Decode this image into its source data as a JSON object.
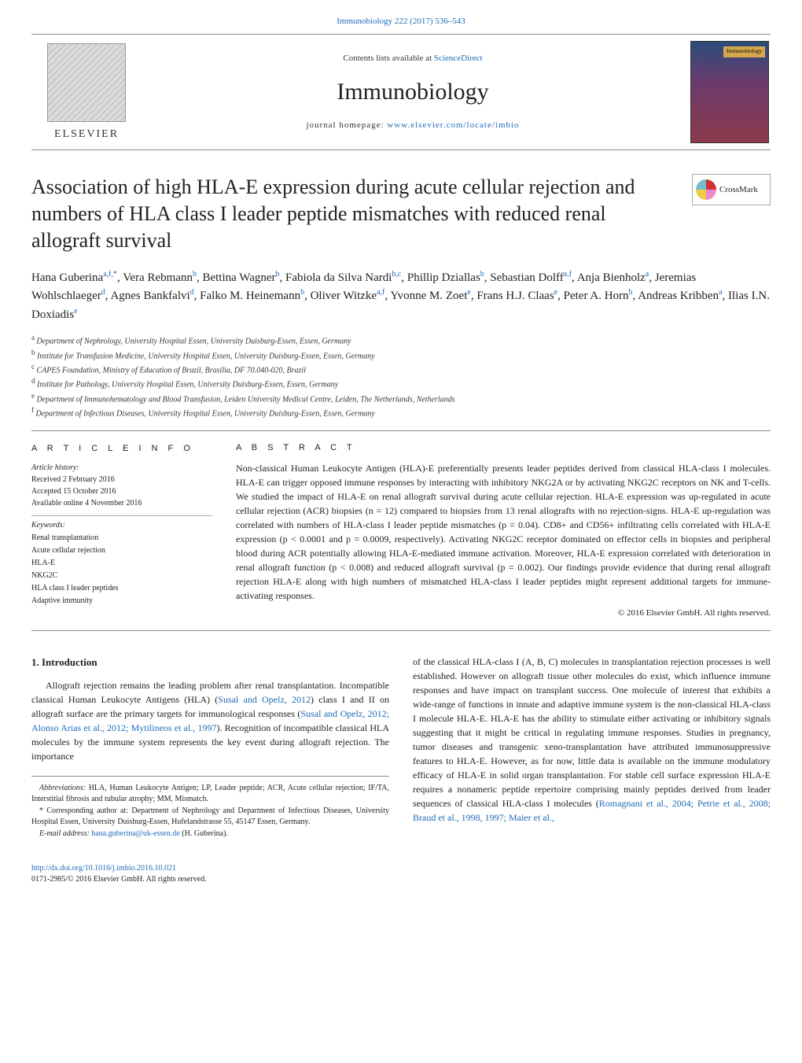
{
  "header": {
    "citation": "Immunobiology 222 (2017) 536–543",
    "contents_prefix": "Contents lists available at ",
    "contents_link": "ScienceDirect",
    "journal": "Immunobiology",
    "homepage_prefix": "journal homepage: ",
    "homepage_link": "www.elsevier.com/locate/imbio",
    "publisher": "ELSEVIER",
    "cover_label": "Immunobiology"
  },
  "crossmark": "CrossMark",
  "title": "Association of high HLA-E expression during acute cellular rejection and numbers of HLA class I leader peptide mismatches with reduced renal allograft survival",
  "authors_html": "Hana Guberina<sup>a,f,*</sup>, Vera Rebmann<sup>b</sup>, Bettina Wagner<sup>b</sup>, Fabiola da Silva Nardi<sup>b,c</sup>, Phillip Dziallas<sup>b</sup>, Sebastian Dolff<sup>a,f</sup>, Anja Bienholz<sup>a</sup>, Jeremias Wohlschlaeger<sup>d</sup>, Agnes Bankfalvi<sup>d</sup>, Falko M. Heinemann<sup>b</sup>, Oliver Witzke<sup>a,f</sup>, Yvonne M. Zoet<sup>e</sup>, Frans H.J. Claas<sup>e</sup>, Peter A. Horn<sup>b</sup>, Andreas Kribben<sup>a</sup>, Ilias I.N. Doxiadis<sup>e</sup>",
  "affiliations": [
    {
      "sup": "a",
      "text": "Department of Nephrology, University Hospital Essen, University Duisburg-Essen, Essen, Germany"
    },
    {
      "sup": "b",
      "text": "Institute for Transfusion Medicine, University Hospital Essen, University Duisburg-Essen, Essen, Germany"
    },
    {
      "sup": "c",
      "text": "CAPES Foundation, Ministry of Education of Brazil, Brasília, DF 70.040-020, Brazil"
    },
    {
      "sup": "d",
      "text": "Institute for Pathology, University Hospital Essen, University Duisburg-Essen, Essen, Germany"
    },
    {
      "sup": "e",
      "text": "Department of Immunohematology and Blood Transfusion, Leiden University Medical Centre, Leiden, The Netherlands, Netherlands"
    },
    {
      "sup": "f",
      "text": "Department of Infectious Diseases, University Hospital Essen, University Duisburg-Essen, Essen, Germany"
    }
  ],
  "info": {
    "heading": "A R T I C L E  I N F O",
    "history_label": "Article history:",
    "history": [
      "Received 2 February 2016",
      "Accepted 15 October 2016",
      "Available online 4 November 2016"
    ],
    "keywords_label": "Keywords:",
    "keywords": [
      "Renal transplantation",
      "Acute cellular rejection",
      "HLA-E",
      "NKG2C",
      "HLA class I leader peptides",
      "Adaptive immunity"
    ]
  },
  "abstract": {
    "heading": "A B S T R A C T",
    "text": "Non-classical Human Leukocyte Antigen (HLA)-E preferentially presents leader peptides derived from classical HLA-class I molecules. HLA-E can trigger opposed immune responses by interacting with inhibitory NKG2A or by activating NKG2C receptors on NK and T-cells. We studied the impact of HLA-E on renal allograft survival during acute cellular rejection. HLA-E expression was up-regulated in acute cellular rejection (ACR) biopsies (n = 12) compared to biopsies from 13 renal allografts with no rejection-signs. HLA-E up-regulation was correlated with numbers of HLA-class I leader peptide mismatches (p = 0.04). CD8+ and CD56+ infiltrating cells correlated with HLA-E expression (p < 0.0001 and p = 0.0009, respectively). Activating NKG2C receptor dominated on effector cells in biopsies and peripheral blood during ACR potentially allowing HLA-E-mediated immune activation. Moreover, HLA-E expression correlated with deterioration in renal allograft function (p < 0.008) and reduced allograft survival (p = 0.002). Our findings provide evidence that during renal allograft rejection HLA-E along with high numbers of mismatched HLA-class I leader peptides might represent additional targets for immune-activating responses.",
    "copyright": "© 2016 Elsevier GmbH. All rights reserved."
  },
  "intro": {
    "heading": "1.  Introduction",
    "col1": "Allograft rejection remains the leading problem after renal transplantation. Incompatible classical Human Leukocyte Antigens (HLA) (Susal and Opelz, 2012) class I and II on allograft surface are the primary targets for immunological responses (Susal and Opelz, 2012; Alonso Arias et al., 2012; Mytilineos et al., 1997). Recognition of incompatible classical HLA molecules by the immune system represents the key event during allograft rejection. The importance",
    "col2": "of the classical HLA-class I (A, B, C) molecules in transplantation rejection processes is well established. However on allograft tissue other molecules do exist, which influence immune responses and have impact on transplant success. One molecule of interest that exhibits a wide-range of functions in innate and adaptive immune system is the non-classical HLA-class I molecule HLA-E. HLA-E has the ability to stimulate either activating or inhibitory signals suggesting that it might be critical in regulating immune responses. Studies in pregnancy, tumor diseases and transgenic xeno-transplantation have attributed immunosuppressive features to HLA-E. However, as for now, little data is available on the immune modulatory efficacy of HLA-E in solid organ transplantation. For stable cell surface expression HLA-E requires a nonameric peptide repertoire comprising mainly peptides derived from leader sequences of classical HLA-class I molecules (Romagnani et al., 2004; Petrie et al., 2008; Braud et al., 1998, 1997; Maier et al.,"
  },
  "footnotes": {
    "abbrev_label": "Abbreviations:",
    "abbrev": "HLA, Human Leukocyte Antigen; LP, Leader peptide; ACR, Acute cellular rejection; IF/TA, Interstitial fibrosis and tubular atrophy; MM, Mismatch.",
    "corr": "* Corresponding author at: Department of Nephrology and Department of Infectious Diseases, University Hospital Essen, University Duisburg-Essen, Hufelandstrasse 55, 45147 Essen, Germany.",
    "email_label": "E-mail address:",
    "email": "hana.guberina@uk-essen.de",
    "email_suffix": "(H. Guberina)."
  },
  "footer": {
    "doi": "http://dx.doi.org/10.1016/j.imbio.2016.10.021",
    "issn": "0171-2985/© 2016 Elsevier GmbH. All rights reserved."
  },
  "colors": {
    "link": "#1e6bb8",
    "rule": "#888888",
    "text": "#222222"
  }
}
